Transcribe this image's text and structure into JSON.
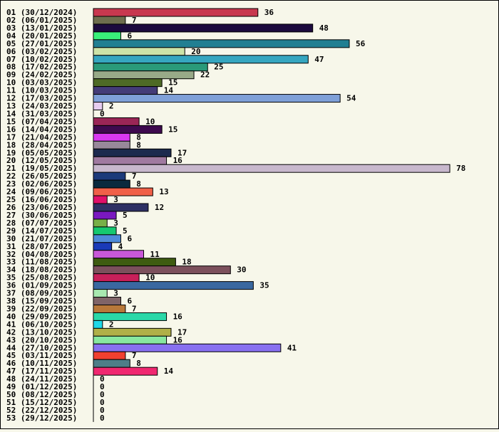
{
  "chart_data": {
    "type": "bar",
    "orientation": "horizontal",
    "title": "",
    "xlabel": "",
    "ylabel": "",
    "xlim": [
      0,
      78
    ],
    "grid": false,
    "categories": [
      "01 (30/12/2024)",
      "02 (06/01/2025)",
      "03 (13/01/2025)",
      "04 (20/01/2025)",
      "05 (27/01/2025)",
      "06 (03/02/2025)",
      "07 (10/02/2025)",
      "08 (17/02/2025)",
      "09 (24/02/2025)",
      "10 (03/03/2025)",
      "11 (10/03/2025)",
      "12 (17/03/2025)",
      "13 (24/03/2025)",
      "14 (31/03/2025)",
      "15 (07/04/2025)",
      "16 (14/04/2025)",
      "17 (21/04/2025)",
      "18 (28/04/2025)",
      "19 (05/05/2025)",
      "20 (12/05/2025)",
      "21 (19/05/2025)",
      "22 (26/05/2025)",
      "23 (02/06/2025)",
      "24 (09/06/2025)",
      "25 (16/06/2025)",
      "26 (23/06/2025)",
      "27 (30/06/2025)",
      "28 (07/07/2025)",
      "29 (14/07/2025)",
      "30 (21/07/2025)",
      "31 (28/07/2025)",
      "32 (04/08/2025)",
      "33 (11/08/2025)",
      "34 (18/08/2025)",
      "35 (25/08/2025)",
      "36 (01/09/2025)",
      "37 (08/09/2025)",
      "38 (15/09/2025)",
      "39 (22/09/2025)",
      "40 (29/09/2025)",
      "41 (06/10/2025)",
      "42 (13/10/2025)",
      "43 (20/10/2025)",
      "44 (27/10/2025)",
      "45 (03/11/2025)",
      "46 (10/11/2025)",
      "47 (17/11/2025)",
      "48 (24/11/2025)",
      "49 (01/12/2025)",
      "50 (08/12/2025)",
      "51 (15/12/2025)",
      "52 (22/12/2025)",
      "53 (29/12/2025)"
    ],
    "values": [
      36,
      7,
      48,
      6,
      56,
      20,
      47,
      25,
      22,
      15,
      14,
      54,
      2,
      0,
      10,
      15,
      8,
      8,
      17,
      16,
      78,
      7,
      8,
      13,
      3,
      12,
      5,
      3,
      5,
      6,
      4,
      11,
      18,
      30,
      10,
      35,
      3,
      6,
      7,
      16,
      2,
      17,
      16,
      41,
      7,
      8,
      14,
      0,
      0,
      0,
      0,
      0,
      0
    ],
    "colors": [
      "#c8384f",
      "#6e6e4e",
      "#1c0a3e",
      "#39f07a",
      "#217f92",
      "#cde3a8",
      "#36a6c0",
      "#2a9a7a",
      "#98aa88",
      "#4e6a26",
      "#443c78",
      "#7fa0d8",
      "#e6cdf0",
      "#f7f7ea",
      "#9a2656",
      "#3e0a4e",
      "#d838f0",
      "#98889a",
      "#1c2a4e",
      "#a07aa0",
      "#c8b8cd",
      "#1c3a7a",
      "#0a2a3e",
      "#f06048",
      "#e0106a",
      "#2e3064",
      "#7a18c0",
      "#78b048",
      "#16c870",
      "#4e8ad8",
      "#1a3ab8",
      "#c858d8",
      "#3e5c10",
      "#7c505c",
      "#c8205a",
      "#3a68a0",
      "#a8e8b0",
      "#806468",
      "#b8783a",
      "#2ad8a8",
      "#20d8e8",
      "#b0b048",
      "#88e8a0",
      "#8870f0",
      "#f04030",
      "#4e7e88",
      "#f02870",
      "#f7f7ea",
      "#f7f7ea",
      "#f7f7ea",
      "#f7f7ea",
      "#f7f7ea",
      "#f7f7ea"
    ]
  }
}
